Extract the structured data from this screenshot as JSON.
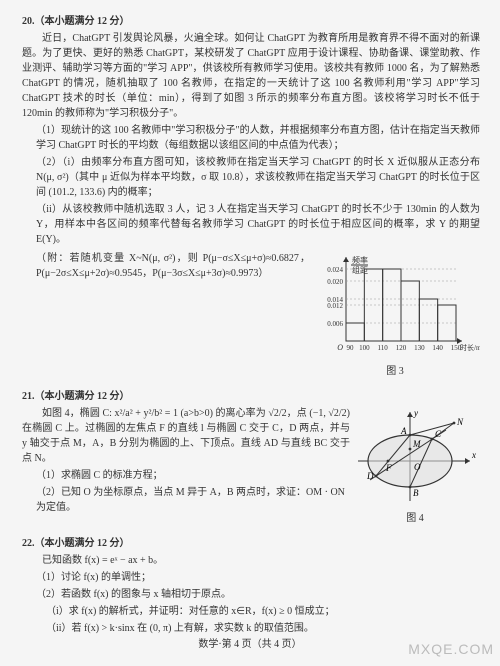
{
  "q20": {
    "heading": "20.（本小题满分 12 分）",
    "para1": "近日，ChatGPT 引发舆论风暴，火遍全球。如何让 ChatGPT 为教育所用是教育界不得不面对的新课题。为了更快、更好的熟悉 ChatGPT，某校研发了 ChatGPT 应用于设计课程、协助备课、课堂助教、作业测评、辅助学习等方面的\"学习 APP\"，供该校所有教师学习使用。该校共有教师 1000 名，为了解熟悉 ChatGPT 的情况，随机抽取了 100 名教师，在指定的一天统计了这 100 名教师利用\"学习 APP\"学习 ChatGPT 技术的时长（单位：min），得到了如图 3 所示的频率分布直方图。该校将学习时长不低于 120min 的教师称为\"学习积极分子\"。",
    "item1": "（1）现统计的这 100 名教师中\"学习积极分子\"的人数，并根据频率分布直方图，估计在指定当天教师学习 ChatGPT 时长的平均数（每组数据以该组区间的中点值为代表）；",
    "item2i": "（2）（i）由频率分布直方图可知，该校教师在指定当天学习 ChatGPT 的时长 X 近似服从正态分布 N(μ, σ²)（其中 μ 近似为样本平均数，σ 取 10.8），求该校教师在指定当天学习 ChatGPT 的时长位于区间 (101.2, 133.6) 内的概率；",
    "item2ii": "（ii）从该校教师中随机选取 3 人，记 3 人在指定当天学习 ChatGPT 的时长不少于 130min 的人数为 Y，用样本中各区间的频率代替每名教师学习 ChatGPT 的时长位于相应区间的概率，求 Y 的期望 E(Y)。",
    "appendix": "（附：若随机变量 X~N(μ, σ²)，则 P(μ−σ≤X≤μ+σ)≈0.6827，P(μ−2σ≤X≤μ+2σ)≈0.9545，P(μ−3σ≤X≤μ+3σ)≈0.9973）",
    "hist": {
      "ylabel1": "频率",
      "ylabel2": "组距",
      "yticks": [
        "0.006",
        "0.012",
        "0.014",
        "0.020",
        "0.024"
      ],
      "xticks": [
        "90",
        "100",
        "110",
        "120",
        "130",
        "140",
        "150"
      ],
      "xlabel": "时长/min",
      "bars": [
        0.006,
        0.024,
        0.024,
        0.02,
        0.014,
        0.012
      ],
      "figlabel": "图 3"
    }
  },
  "q21": {
    "heading": "21.（本小题满分 12 分）",
    "intro": "如图 4，椭圆 C: x²/a² + y²/b² = 1 (a>b>0) 的离心率为 √2/2，点 (−1, √2/2) 在椭圆 C 上。过椭圆的左焦点 F 的直线 l 与椭圆 C 交于 C，D 两点，并与 y 轴交于点 M，A，B 分别为椭圆的上、下顶点。直线 AD 与直线 BC 交于点 N。",
    "item1": "（1）求椭圆 C 的标准方程；",
    "item2": "（2）已知 O 为坐标原点，当点 M 异于 A，B 两点时，求证：OM · ON 为定值。",
    "fig": {
      "labels": {
        "A": "A",
        "B": "B",
        "C": "C",
        "D": "D",
        "F": "F",
        "M": "M",
        "N": "N",
        "O": "O",
        "x": "x",
        "y": "y"
      },
      "figlabel": "图 4"
    }
  },
  "q22": {
    "heading": "22.（本小题满分 12 分）",
    "intro": "已知函数 f(x) = eˣ − ax + b。",
    "item1": "（1）讨论 f(x) 的单调性；",
    "item2": "（2）若函数 f(x) 的图象与 x 轴相切于原点。",
    "item2i": "（i）求 f(x) 的解析式，并证明：对任意的 x∈R，f(x) ≥ 0 恒成立；",
    "item2ii": "（ii）若 f(x) > k·sinx 在 (0, π) 上有解，求实数 k 的取值范围。"
  },
  "footer": "数学·第 4 页（共 4 页）",
  "watermark": "MXQE.COM"
}
